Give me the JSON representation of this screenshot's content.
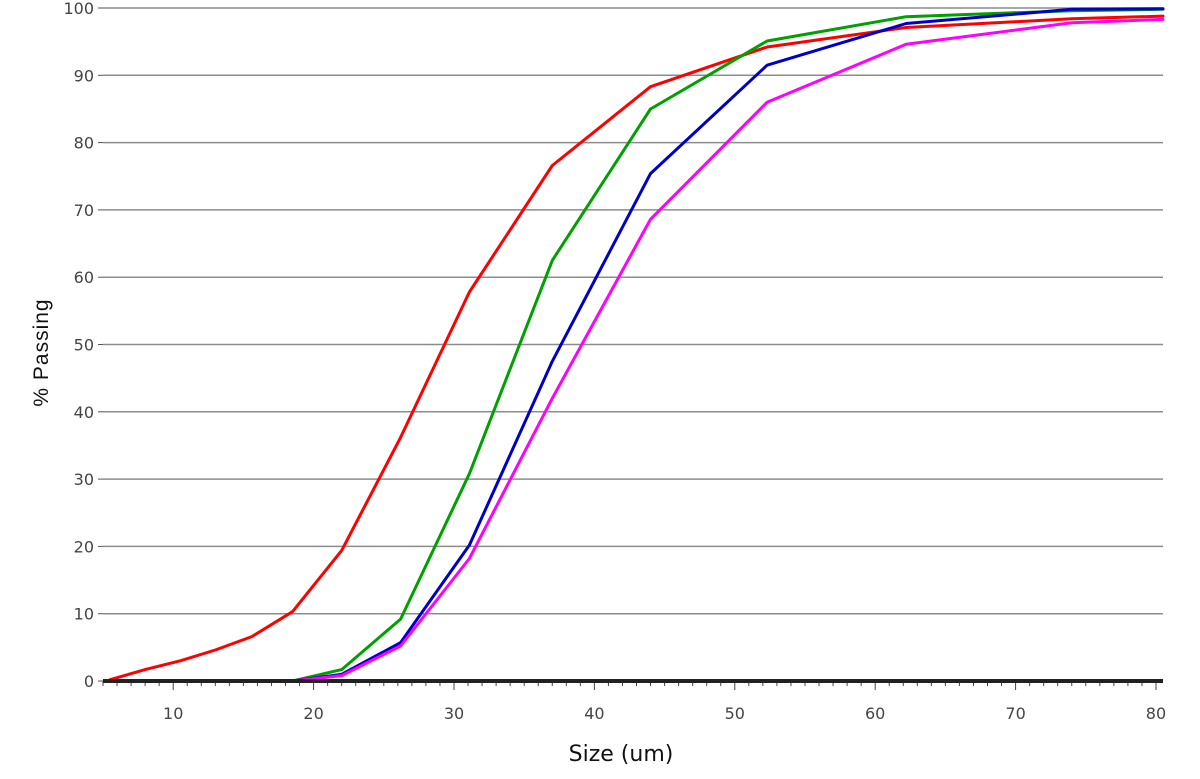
{
  "chart_data": {
    "type": "line",
    "title": "",
    "xlabel": "Size (um)",
    "ylabel": "% Passing",
    "xlim": [
      5,
      80.5
    ],
    "ylim": [
      0,
      100
    ],
    "x_ticks": [
      10,
      20,
      30,
      40,
      50,
      60,
      70,
      80
    ],
    "y_ticks": [
      0,
      10,
      20,
      30,
      40,
      50,
      60,
      70,
      80,
      90,
      100
    ],
    "grid": "horizontal",
    "legend": "none",
    "series": [
      {
        "color": "#ff0000",
        "x": [
          5.5,
          8,
          10.5,
          13,
          15.6,
          18.5,
          22,
          26.2,
          31.1,
          37,
          44,
          52.3,
          62.2,
          74,
          80.5
        ],
        "y": [
          0.2,
          1.7,
          3,
          4.6,
          6.6,
          10.3,
          19.4,
          36.2,
          57.8,
          76.6,
          88.3,
          94.2,
          97.1,
          98.4,
          98.8
        ]
      },
      {
        "color": "#00a000",
        "x": [
          5.5,
          15.6,
          18.5,
          22,
          26.2,
          31.1,
          37,
          44,
          52.3,
          62.2,
          74,
          80.5
        ],
        "y": [
          0,
          0,
          0,
          1.7,
          9.2,
          30.8,
          62.5,
          85,
          95.1,
          98.7,
          99.6,
          99.8
        ]
      },
      {
        "color": "#0000c8",
        "x": [
          5.5,
          15.6,
          18.5,
          22,
          26.2,
          31.1,
          37,
          44,
          52.3,
          62.2,
          74,
          80.5
        ],
        "y": [
          0,
          0,
          0,
          1,
          5.7,
          20.2,
          47.5,
          75.4,
          91.5,
          97.7,
          99.8,
          99.9
        ]
      },
      {
        "color": "#ff00ff",
        "x": [
          5.5,
          15.6,
          18.5,
          22,
          26.2,
          31.1,
          37,
          44,
          52.3,
          62.2,
          74,
          80.5
        ],
        "y": [
          0,
          0,
          0,
          0.8,
          5.2,
          18.2,
          42,
          68.6,
          86,
          94.6,
          97.8,
          98.3
        ]
      }
    ]
  }
}
